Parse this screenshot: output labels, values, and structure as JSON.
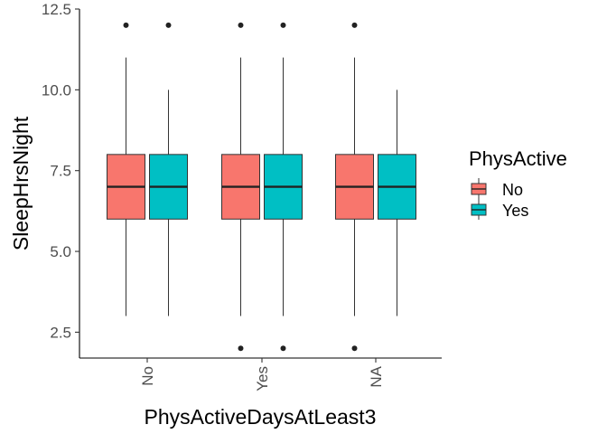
{
  "chart_data": {
    "type": "boxplot",
    "xlabel": "PhysActiveDaysAtLeast3",
    "ylabel": "SleepHrsNight",
    "categories": [
      "No",
      "Yes",
      "NA"
    ],
    "ylim": [
      1.7,
      12.5
    ],
    "yticks": [
      2.5,
      5.0,
      7.5,
      10.0,
      12.5
    ],
    "ytick_labels": [
      "2.5",
      "5.0",
      "7.5",
      "10.0",
      "12.5"
    ],
    "grid": false,
    "legend": {
      "title": "PhysActive",
      "placement": "right",
      "entries": [
        {
          "name": "No",
          "color": "#F8766D"
        },
        {
          "name": "Yes",
          "color": "#00BFC4"
        }
      ]
    },
    "series": [
      {
        "name": "No",
        "color": "#F8766D",
        "boxes": [
          {
            "category": "No",
            "whisker_low": 3,
            "q1": 6,
            "median": 7,
            "q3": 8,
            "whisker_high": 11,
            "outliers": [
              12
            ]
          },
          {
            "category": "Yes",
            "whisker_low": 3,
            "q1": 6,
            "median": 7,
            "q3": 8,
            "whisker_high": 11,
            "outliers": [
              2,
              12
            ]
          },
          {
            "category": "NA",
            "whisker_low": 3,
            "q1": 6,
            "median": 7,
            "q3": 8,
            "whisker_high": 11,
            "outliers": [
              2,
              12
            ]
          }
        ]
      },
      {
        "name": "Yes",
        "color": "#00BFC4",
        "boxes": [
          {
            "category": "No",
            "whisker_low": 3,
            "q1": 6,
            "median": 7,
            "q3": 8,
            "whisker_high": 10,
            "outliers": [
              12
            ]
          },
          {
            "category": "Yes",
            "whisker_low": 3,
            "q1": 6,
            "median": 7,
            "q3": 8,
            "whisker_high": 11,
            "outliers": [
              2,
              12
            ]
          },
          {
            "category": "NA",
            "whisker_low": 3,
            "q1": 6,
            "median": 7,
            "q3": 8,
            "whisker_high": 10,
            "outliers": []
          }
        ]
      }
    ]
  }
}
